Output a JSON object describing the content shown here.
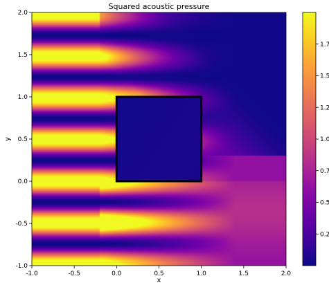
{
  "chart_data": {
    "type": "heatmap",
    "title": "Squared acoustic pressure",
    "xlabel": "x",
    "ylabel": "y",
    "xlim": [
      -1.0,
      2.0
    ],
    "ylim": [
      -1.0,
      2.0
    ],
    "x_ticks": [
      "-1.0",
      "-0.5",
      "0.0",
      "0.5",
      "1.0",
      "1.5",
      "2.0"
    ],
    "x_tick_values": [
      -1.0,
      -0.5,
      0.0,
      0.5,
      1.0,
      1.5,
      2.0
    ],
    "y_ticks": [
      "-1.0",
      "-0.5",
      "0.0",
      "0.5",
      "1.0",
      "1.5",
      "2.0"
    ],
    "y_tick_values": [
      -1.0,
      -0.5,
      0.0,
      0.5,
      1.0,
      1.5,
      2.0
    ],
    "colormap": "plasma",
    "colorbar": {
      "range": [
        0.0,
        2.0
      ],
      "ticks": [
        "0.25",
        "0.50",
        "0.75",
        "1.00",
        "1.25",
        "1.50",
        "1.75"
      ],
      "tick_values": [
        0.25,
        0.5,
        0.75,
        1.0,
        1.25,
        1.5,
        1.75
      ]
    },
    "obstacle": {
      "x0": 0.0,
      "x1": 1.0,
      "y0": 0.0,
      "y1": 1.0,
      "color": "#000000"
    },
    "grid": false
  }
}
